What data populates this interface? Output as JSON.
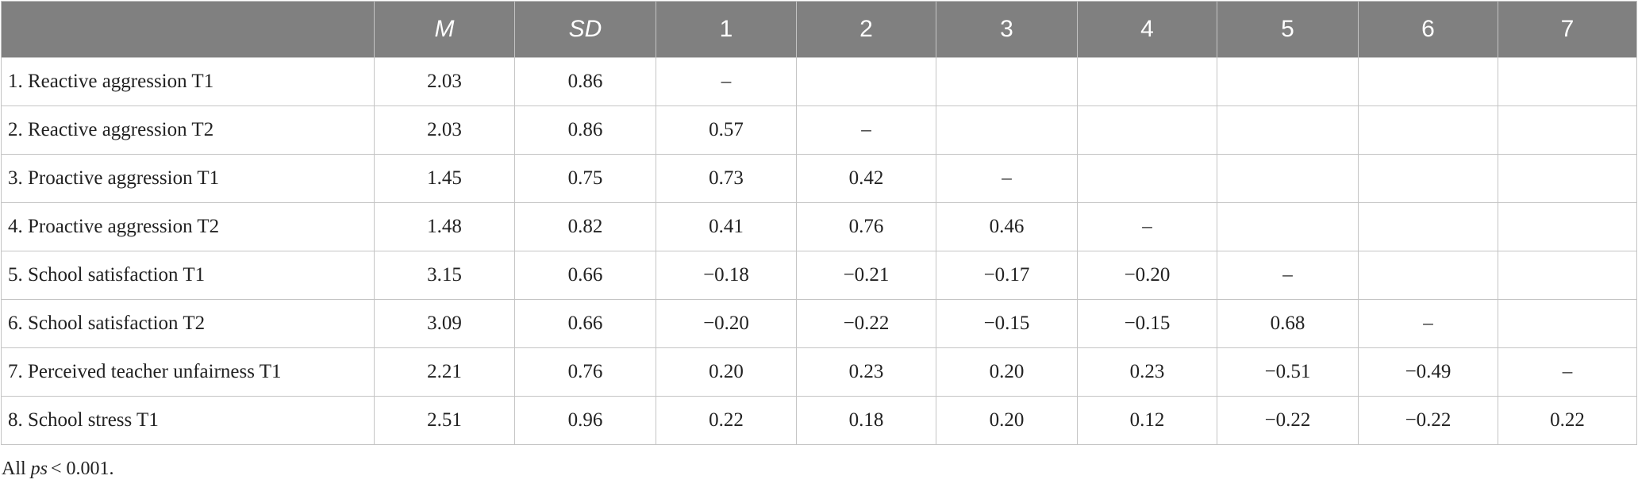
{
  "table": {
    "header": [
      null,
      "M",
      "SD",
      "1",
      "2",
      "3",
      "4",
      "5",
      "6",
      "7"
    ],
    "rows": [
      [
        "1. Reactive aggression T1",
        "2.03",
        "0.86",
        "–",
        null,
        null,
        null,
        null,
        null,
        null
      ],
      [
        "2. Reactive aggression T2",
        "2.03",
        "0.86",
        "0.57",
        "–",
        null,
        null,
        null,
        null,
        null
      ],
      [
        "3. Proactive aggression T1",
        "1.45",
        "0.75",
        "0.73",
        "0.42",
        "–",
        null,
        null,
        null,
        null
      ],
      [
        "4. Proactive aggression T2",
        "1.48",
        "0.82",
        "0.41",
        "0.76",
        "0.46",
        "–",
        null,
        null,
        null
      ],
      [
        "5. School satisfaction T1",
        "3.15",
        "0.66",
        "−0.18",
        "−0.21",
        "−0.17",
        "−0.20",
        "–",
        null,
        null
      ],
      [
        "6. School satisfaction T2",
        "3.09",
        "0.66",
        "−0.20",
        "−0.22",
        "−0.15",
        "−0.15",
        "0.68",
        "–",
        null
      ],
      [
        "7. Perceived teacher unfairness T1",
        "2.21",
        "0.76",
        "0.20",
        "0.23",
        "0.20",
        "0.23",
        "−0.51",
        "−0.49",
        "–"
      ],
      [
        "8. School stress T1",
        "2.51",
        "0.96",
        "0.22",
        "0.18",
        "0.20",
        "0.12",
        "−0.22",
        "−0.22",
        "0.22"
      ]
    ]
  },
  "footnote": [
    "All",
    "ps",
    "< 0.001."
  ]
}
